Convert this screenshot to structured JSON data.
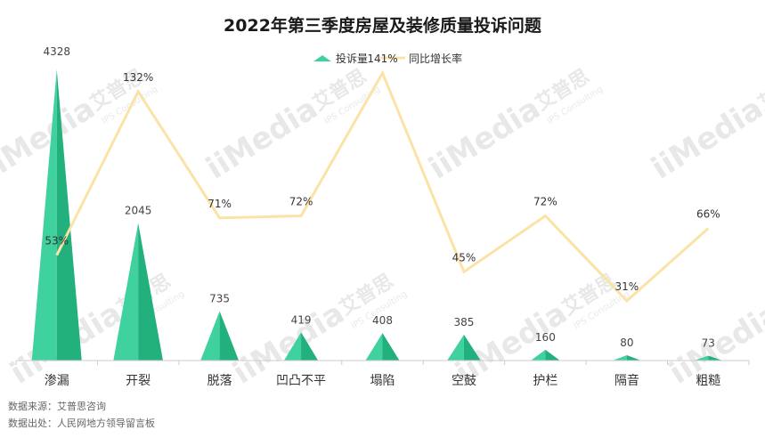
{
  "title": "2022年第三季度房屋及装修质量投诉问题",
  "watermark": {
    "logo": "iiMedia",
    "cn": "艾普思",
    "en": "IPS Consulting"
  },
  "footer": {
    "source": "数据来源：艾普思咨询",
    "origin": "数据出处：人民网地方领导留言板"
  },
  "colors": {
    "bar_light": "#3fd29f",
    "bar_dark": "#22b07c",
    "line": "#fbe3a6",
    "axis": "#cccccc",
    "text": "#333333"
  },
  "chart_data": {
    "type": "bar",
    "categories": [
      "渗漏",
      "开裂",
      "脱落",
      "凹凸不平",
      "塌陷",
      "空鼓",
      "护栏",
      "隔音",
      "粗糙"
    ],
    "series": [
      {
        "name": "投诉量",
        "type": "bar",
        "values": [
          4328,
          2045,
          735,
          419,
          408,
          385,
          160,
          80,
          73
        ]
      },
      {
        "name": "同比增长率",
        "type": "line",
        "values": [
          53,
          132,
          71,
          72,
          141,
          45,
          72,
          31,
          66
        ],
        "labels": [
          "53%",
          "132%",
          "71%",
          "72%",
          "141%",
          "45%",
          "72%",
          "31%",
          "66%"
        ]
      }
    ],
    "bar_ylim": [
      0,
      4328
    ],
    "line_ylim": [
      0,
      141
    ],
    "legend": "top-center",
    "grid": false
  }
}
